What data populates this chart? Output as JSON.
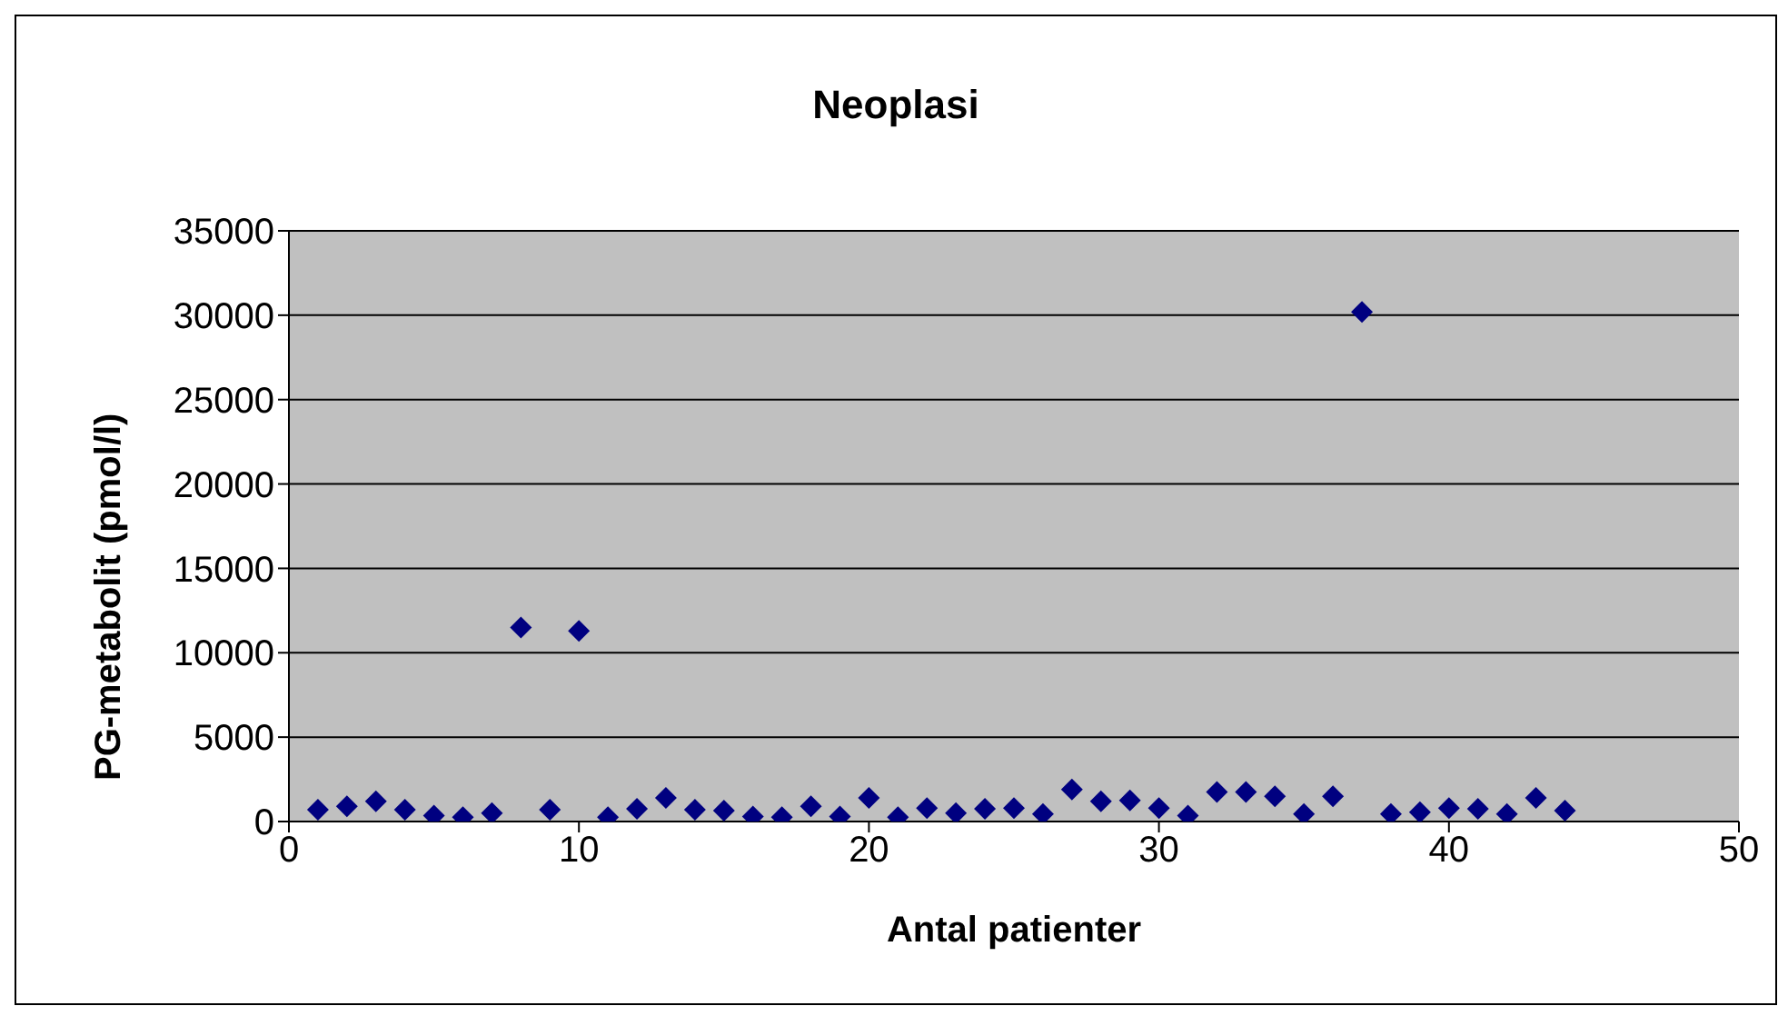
{
  "chart_data": {
    "type": "scatter",
    "title": "Neoplasi",
    "xlabel": "Antal patienter",
    "ylabel": "PG-metabolit (pmol/l)",
    "x": [
      1,
      2,
      3,
      4,
      5,
      6,
      7,
      8,
      9,
      10,
      11,
      12,
      13,
      14,
      15,
      16,
      17,
      18,
      19,
      20,
      21,
      22,
      23,
      24,
      25,
      26,
      27,
      28,
      29,
      30,
      31,
      32,
      33,
      34,
      35,
      36,
      37,
      38,
      39,
      40,
      41,
      42,
      43,
      44
    ],
    "series": [
      {
        "color": "#000080",
        "values": [
          700,
          900,
          1200,
          700,
          350,
          250,
          500,
          11500,
          700,
          11300,
          250,
          750,
          1400,
          700,
          650,
          300,
          250,
          900,
          300,
          1400,
          250,
          800,
          500,
          750,
          800,
          450,
          1900,
          1200,
          1250,
          800,
          350,
          1750,
          1750,
          1500,
          450,
          1500,
          30200,
          450,
          550,
          800,
          750,
          450,
          1400,
          650
        ]
      }
    ],
    "xlim": [
      0,
      50
    ],
    "xticks": [
      0,
      10,
      20,
      30,
      40,
      50
    ],
    "ylim": [
      0,
      35000
    ],
    "yticks": [
      0,
      5000,
      10000,
      15000,
      20000,
      25000,
      30000,
      35000
    ],
    "grid": "y",
    "legend": false,
    "marker": "diamond"
  }
}
